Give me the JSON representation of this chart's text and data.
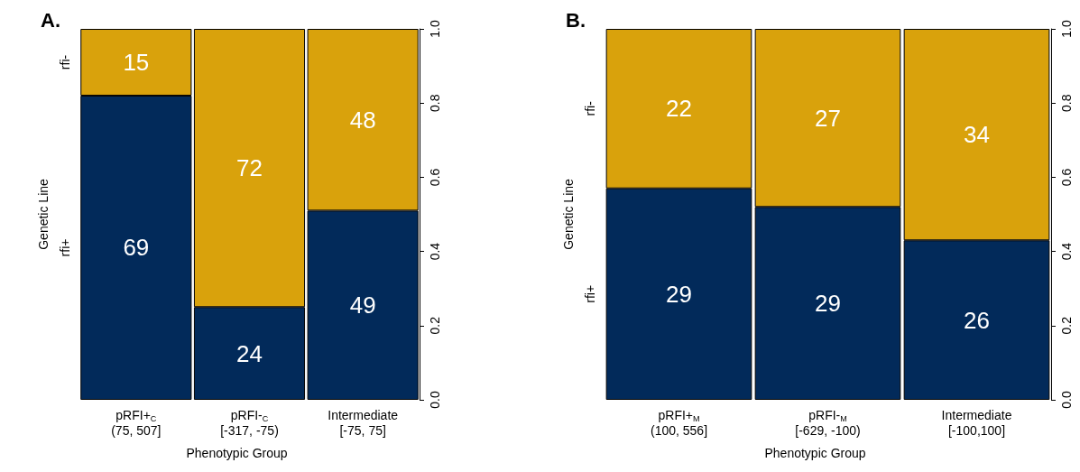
{
  "chart_data": [
    {
      "type": "bar",
      "title": "A.",
      "xlabel": "Phenotypic Group",
      "ylabel": "Genetic Line",
      "stacked": true,
      "grid": false,
      "categories": [
        "pRFI+$_{C}$\n(75, 507]",
        "pRFI-$_{C}$\n[-317, -75)",
        "Intermediate\n[-75, 75]"
      ],
      "series": [
        {
          "name": "rfi+",
          "color": "#022a5a",
          "values": [
            0.82,
            0.25,
            0.51
          ]
        },
        {
          "name": "rfi-",
          "color": "#d9a20c",
          "values": [
            0.18,
            0.75,
            0.49
          ]
        }
      ],
      "annotations": [
        "69",
        "24",
        "49",
        "15",
        "72",
        "48"
      ],
      "ylim": [
        0,
        1
      ],
      "yticks": [
        {
          "value": 0,
          "label": "0.0"
        },
        {
          "value": 0.2,
          "label": "0.2"
        },
        {
          "value": 0.4,
          "label": "0.4"
        },
        {
          "value": 0.6,
          "label": "0.6"
        },
        {
          "value": 0.8,
          "label": "0.8"
        },
        {
          "value": 1,
          "label": "1.0"
        }
      ]
    },
    {
      "type": "bar",
      "title": "B.",
      "xlabel": "Phenotypic Group",
      "ylabel": "Genetic Line",
      "stacked": true,
      "grid": false,
      "categories": [
        "pRFI+$_{M}$\n(100, 556]",
        "pRFI-$_{M}$\n[-629, -100)",
        "Intermediate\n[-100,100]"
      ],
      "series": [
        {
          "name": "rfi+",
          "color": "#022a5a",
          "values": [
            0.57,
            0.52,
            0.43
          ]
        },
        {
          "name": "rfi-",
          "color": "#d9a20c",
          "values": [
            0.43,
            0.48,
            0.57
          ]
        }
      ],
      "annotations": [
        "29",
        "29",
        "26",
        "22",
        "27",
        "34"
      ],
      "ylim": [
        0,
        1
      ],
      "yticks": [
        {
          "value": 0,
          "label": "0.0"
        },
        {
          "value": 0.2,
          "label": "0.2"
        },
        {
          "value": 0.4,
          "label": "0.4"
        },
        {
          "value": 0.6,
          "label": "0.6"
        },
        {
          "value": 0.8,
          "label": "0.8"
        },
        {
          "value": 1,
          "label": "1.0"
        }
      ]
    }
  ]
}
